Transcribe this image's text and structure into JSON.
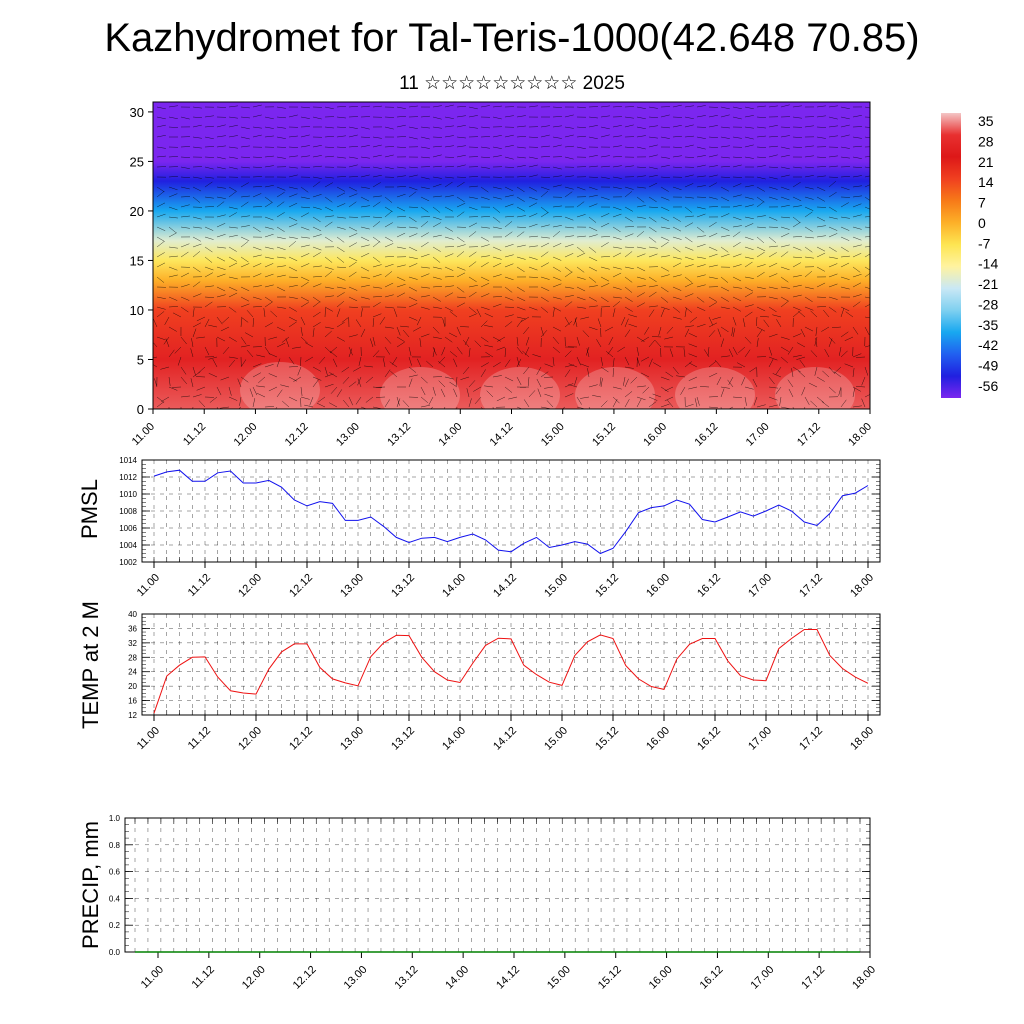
{
  "title": "Kazhydromet for Tal-Teris-1000(42.648 70.85)",
  "subtitle": "11 ☆☆☆☆☆☆☆☆☆ 2025",
  "chart_data": [
    {
      "type": "heatmap",
      "name": "temperature-wind cross-section",
      "x_tick_labels": [
        "11.00",
        "11.12",
        "12.00",
        "12.12",
        "13.00",
        "13.12",
        "14.00",
        "14.12",
        "15.00",
        "15.12",
        "16.00",
        "16.12",
        "17.00",
        "17.12",
        "18.00"
      ],
      "y_tick_labels": [
        "0",
        "5",
        "10",
        "15",
        "20",
        "25",
        "30"
      ],
      "ylim": [
        0,
        31
      ],
      "colorbar": {
        "labels": [
          "35",
          "28",
          "21",
          "14",
          "7",
          "0",
          "-7",
          "-14",
          "-21",
          "-28",
          "-35",
          "-42",
          "-49",
          "-56"
        ],
        "colors": [
          "#f4c6c6",
          "#e83030",
          "#dd1818",
          "#f04020",
          "#f77a18",
          "#fdb028",
          "#fde552",
          "#fff3a0",
          "#c9e8f5",
          "#7fd0f0",
          "#18a8f0",
          "#2160f0",
          "#2020e0",
          "#7b26ef"
        ]
      },
      "temperature_profile": [
        {
          "y": 0,
          "temp": 30
        },
        {
          "y": 5,
          "temp": 24
        },
        {
          "y": 10,
          "temp": 14
        },
        {
          "y": 13,
          "temp": 0
        },
        {
          "y": 15,
          "temp": -8
        },
        {
          "y": 17,
          "temp": -18
        },
        {
          "y": 20,
          "temp": -35
        },
        {
          "y": 23,
          "temp": -49
        },
        {
          "y": 25,
          "temp": -56
        },
        {
          "y": 31,
          "temp": -58
        }
      ]
    },
    {
      "type": "line",
      "ylabel": "PMSL",
      "ylim": [
        1002,
        1014
      ],
      "y_tick_labels": [
        "1002",
        "1004",
        "1006",
        "1008",
        "1010",
        "1012",
        "1014"
      ],
      "x_tick_labels": [
        "11.00",
        "11.12",
        "12.00",
        "12.12",
        "13.00",
        "13.12",
        "14.00",
        "14.12",
        "15.00",
        "15.12",
        "16.00",
        "16.12",
        "17.00",
        "17.12",
        "18.00"
      ],
      "color": "#1111ee",
      "values": [
        1012.1,
        1012.6,
        1012.8,
        1011.5,
        1011.5,
        1012.5,
        1012.7,
        1011.3,
        1011.3,
        1011.6,
        1010.8,
        1009.3,
        1008.6,
        1009.1,
        1008.9,
        1006.9,
        1006.9,
        1007.3,
        1006.2,
        1004.9,
        1004.3,
        1004.8,
        1004.9,
        1004.4,
        1004.9,
        1005.3,
        1004.6,
        1003.4,
        1003.2,
        1004.2,
        1004.9,
        1003.7,
        1004.0,
        1004.4,
        1004.1,
        1003.0,
        1003.6,
        1005.6,
        1007.8,
        1008.4,
        1008.6,
        1009.3,
        1008.8,
        1007.0,
        1006.7,
        1007.3,
        1007.9,
        1007.4,
        1008.0,
        1008.7,
        1008.0,
        1006.7,
        1006.3,
        1007.7,
        1009.8,
        1010.1,
        1011.0
      ]
    },
    {
      "type": "line",
      "ylabel": "TEMP at 2 M",
      "ylim": [
        12,
        40
      ],
      "y_tick_labels": [
        "12",
        "16",
        "20",
        "24",
        "28",
        "32",
        "36",
        "40"
      ],
      "x_tick_labels": [
        "11.00",
        "11.12",
        "12.00",
        "12.12",
        "13.00",
        "13.12",
        "14.00",
        "14.12",
        "15.00",
        "15.12",
        "16.00",
        "16.12",
        "17.00",
        "17.12",
        "18.00"
      ],
      "color": "#ee1111",
      "values": [
        12.5,
        22.8,
        25.8,
        28.0,
        28.1,
        22.5,
        18.7,
        18.1,
        17.8,
        24.7,
        29.5,
        31.7,
        31.7,
        25.2,
        22.0,
        20.9,
        20.1,
        28.2,
        32.0,
        34.1,
        34.0,
        28.0,
        24.0,
        21.7,
        21.0,
        26.4,
        31.3,
        33.3,
        33.1,
        25.8,
        23.2,
        21.1,
        20.2,
        28.5,
        32.3,
        34.2,
        33.2,
        25.7,
        22.0,
        19.9,
        19.1,
        27.5,
        31.6,
        33.2,
        33.2,
        27.0,
        22.9,
        21.7,
        21.5,
        30.4,
        33.2,
        35.7,
        35.7,
        28.5,
        24.9,
        22.5,
        20.8
      ]
    },
    {
      "type": "line",
      "ylabel": "PRECIP, mm",
      "ylim": [
        0,
        1
      ],
      "y_tick_labels": [
        "0.0",
        "0.2",
        "0.4",
        "0.6",
        "0.8",
        "1.0"
      ],
      "x_tick_labels": [
        "11.00",
        "11.12",
        "12.00",
        "12.12",
        "13.00",
        "13.12",
        "14.00",
        "14.12",
        "15.00",
        "15.12",
        "16.00",
        "16.12",
        "17.00",
        "17.12",
        "18.00"
      ],
      "color": "#008000",
      "values": [
        0,
        0,
        0,
        0,
        0,
        0,
        0,
        0,
        0,
        0,
        0,
        0,
        0,
        0,
        0,
        0,
        0,
        0,
        0,
        0,
        0,
        0,
        0,
        0,
        0,
        0,
        0,
        0,
        0,
        0,
        0,
        0,
        0,
        0,
        0,
        0,
        0,
        0,
        0,
        0,
        0,
        0,
        0,
        0,
        0,
        0,
        0,
        0,
        0,
        0,
        0,
        0,
        0,
        0,
        0,
        0,
        0
      ]
    }
  ]
}
